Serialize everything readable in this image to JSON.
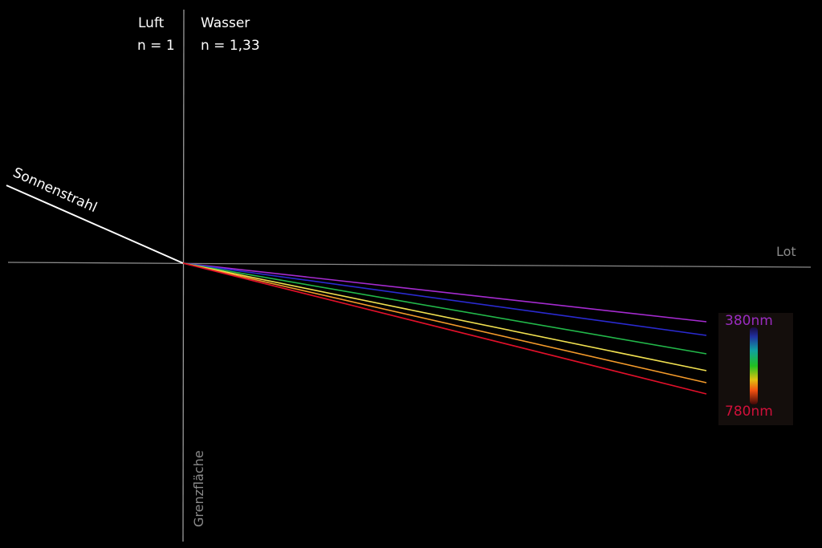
{
  "labels": {
    "medium_left": "Luft",
    "index_left": "n = 1",
    "medium_right": "Wasser",
    "index_right": "n = 1,33",
    "incident_ray": "Sonnenstrahl",
    "normal": "Lot",
    "interface": "Grenzfläche",
    "wavelength_min": "380nm",
    "wavelength_max": "780nm"
  },
  "colors": {
    "background": "#000000",
    "axis": "#9a9a9a",
    "incident_ray": "#ffffff",
    "wavelength_min_label": "#9a2cc0",
    "wavelength_max_label": "#d0103a",
    "refracted_rays": [
      "#a52bd0",
      "#2a2ad0",
      "#22b84a",
      "#f0e050",
      "#f39a2a",
      "#e0102a"
    ]
  }
}
